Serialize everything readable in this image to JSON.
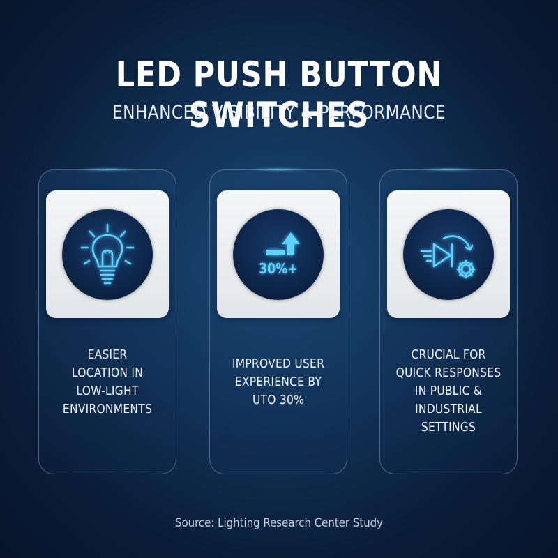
{
  "header": {
    "title": "LED PUSH BUTTON SWITCHES",
    "subtitle": "ENHANCED VISIBILITY & PERFORMANCE"
  },
  "cards": [
    {
      "icon": "lightbulb-icon",
      "lines": [
        "EASIER",
        "LOCATION IN",
        "LOW-LIGHT",
        "ENVIRONMENTS"
      ]
    },
    {
      "icon": "arrow-up-icon",
      "icon_text": "30%+",
      "lines": [
        "IMPROVED USER",
        "EXPERIENCE BY",
        "UTO 30%"
      ]
    },
    {
      "icon": "fast-forward-gear-icon",
      "lines": [
        "CRUCIAL FOR",
        "QUICK RESPONSES",
        "IN PUBLIC &",
        "INDUSTRIAL SETTINGS"
      ]
    }
  ],
  "footer": {
    "source": "Source: Lighting Research Center Study"
  },
  "colors": {
    "accent": "#5fd3ff",
    "background": "#0a1d38",
    "card_icon_bg": "#f0f2f4"
  }
}
